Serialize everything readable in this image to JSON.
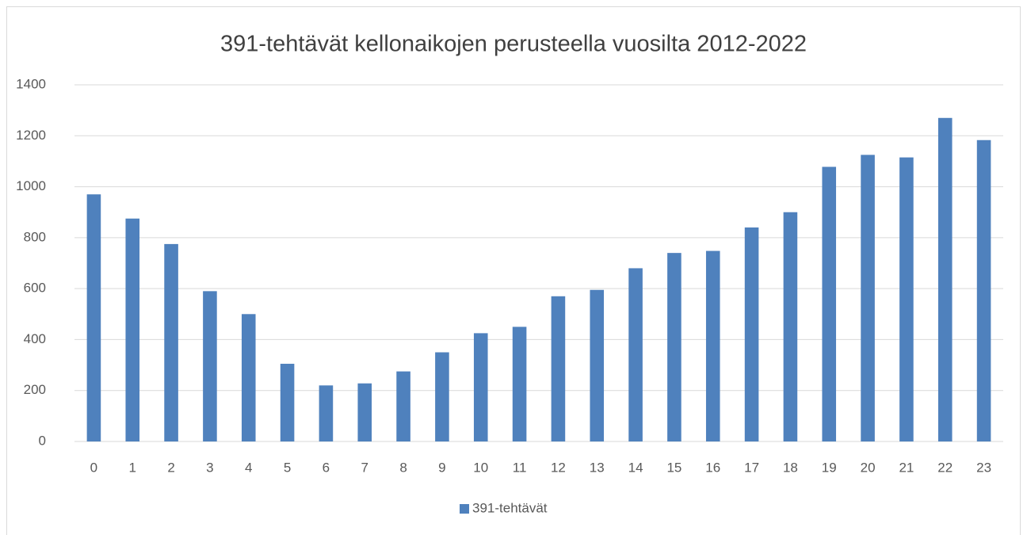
{
  "chart_data": {
    "type": "bar",
    "title": "391-tehtävät kellonaikojen perusteella vuosilta 2012-2022",
    "categories": [
      "0",
      "1",
      "2",
      "3",
      "4",
      "5",
      "6",
      "7",
      "8",
      "9",
      "10",
      "11",
      "12",
      "13",
      "14",
      "15",
      "16",
      "17",
      "18",
      "19",
      "20",
      "21",
      "22",
      "23"
    ],
    "series": [
      {
        "name": "391-tehtävät",
        "color": "#4f81bd",
        "values": [
          970,
          875,
          775,
          590,
          500,
          305,
          220,
          228,
          275,
          350,
          425,
          450,
          570,
          595,
          680,
          740,
          748,
          840,
          900,
          1078,
          1125,
          1115,
          1270,
          1183
        ]
      }
    ],
    "ylim": [
      0,
      1400
    ],
    "yticks": [
      0,
      200,
      400,
      600,
      800,
      1000,
      1200,
      1400
    ],
    "grid": true,
    "legend": "bottom"
  }
}
